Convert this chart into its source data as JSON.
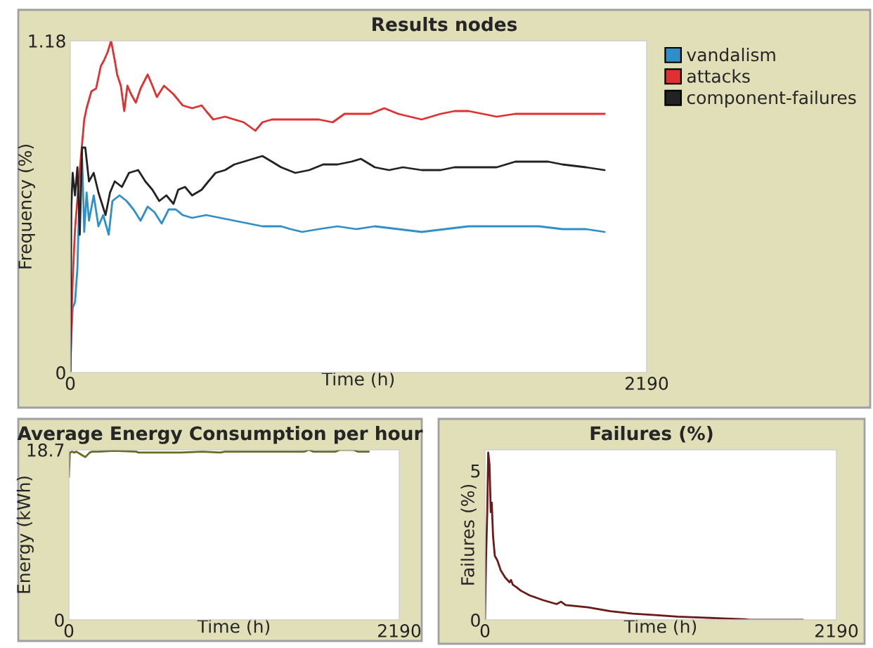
{
  "chart_data": [
    {
      "type": "line",
      "title": "Results nodes",
      "xlabel": "Time (h)",
      "ylabel": "Frequency (%)",
      "xlim": [
        0,
        2190
      ],
      "xticks": [
        0,
        2190
      ],
      "ylim": [
        0,
        1.18
      ],
      "yticks": [
        0,
        1.18
      ],
      "grid": false,
      "legend": "right",
      "series": [
        {
          "name": "vandalism",
          "color": "#2f8fc9",
          "x": [
            0,
            4,
            9,
            18,
            27,
            32,
            39,
            45,
            53,
            62,
            71,
            89,
            107,
            125,
            146,
            160,
            187,
            214,
            240,
            267,
            294,
            320,
            347,
            374,
            401,
            427,
            463,
            516,
            570,
            623,
            677,
            730,
            801,
            837,
            881,
            944,
            1015,
            1086,
            1157,
            1246,
            1335,
            1424,
            1513,
            1602,
            1691,
            1781,
            1870,
            1959,
            2030
          ],
          "values": [
            0,
            0.13,
            0.23,
            0.25,
            0.37,
            0.54,
            0.67,
            0.76,
            0.5,
            0.64,
            0.54,
            0.63,
            0.52,
            0.56,
            0.49,
            0.61,
            0.63,
            0.61,
            0.58,
            0.54,
            0.59,
            0.57,
            0.53,
            0.58,
            0.58,
            0.56,
            0.55,
            0.56,
            0.55,
            0.54,
            0.53,
            0.52,
            0.52,
            0.51,
            0.5,
            0.51,
            0.52,
            0.51,
            0.52,
            0.51,
            0.5,
            0.51,
            0.52,
            0.52,
            0.52,
            0.52,
            0.51,
            0.51,
            0.5
          ]
        },
        {
          "name": "attacks",
          "color": "#e03030",
          "x": [
            0,
            4,
            9,
            18,
            36,
            53,
            62,
            80,
            98,
            116,
            128,
            142,
            155,
            169,
            178,
            192,
            205,
            217,
            231,
            249,
            267,
            294,
            312,
            329,
            356,
            392,
            427,
            463,
            499,
            516,
            543,
            588,
            623,
            659,
            703,
            730,
            766,
            801,
            837,
            890,
            944,
            997,
            1042,
            1086,
            1140,
            1193,
            1246,
            1335,
            1407,
            1460,
            1513,
            1567,
            1620,
            1691,
            1781,
            1870,
            1959,
            2030
          ],
          "values": [
            0,
            0.16,
            0.33,
            0.51,
            0.72,
            0.9,
            0.94,
            1.0,
            1.01,
            1.09,
            1.11,
            1.14,
            1.18,
            1.11,
            1.06,
            1.02,
            0.93,
            1.02,
            0.99,
            0.96,
            1.01,
            1.06,
            1.02,
            0.98,
            1.02,
            0.99,
            0.95,
            0.94,
            0.95,
            0.93,
            0.9,
            0.91,
            0.9,
            0.89,
            0.86,
            0.89,
            0.9,
            0.9,
            0.9,
            0.9,
            0.9,
            0.89,
            0.92,
            0.92,
            0.92,
            0.94,
            0.92,
            0.9,
            0.92,
            0.93,
            0.93,
            0.92,
            0.91,
            0.92,
            0.92,
            0.92,
            0.92,
            0.92
          ]
        },
        {
          "name": "component-failures",
          "color": "#222222",
          "x": [
            0,
            4,
            9,
            18,
            27,
            36,
            45,
            57,
            71,
            89,
            107,
            134,
            151,
            169,
            196,
            223,
            258,
            285,
            312,
            338,
            365,
            392,
            410,
            436,
            463,
            499,
            525,
            552,
            588,
            623,
            659,
            694,
            730,
            766,
            801,
            855,
            908,
            961,
            1015,
            1068,
            1104,
            1157,
            1211,
            1264,
            1335,
            1407,
            1460,
            1513,
            1567,
            1620,
            1691,
            1763,
            1816,
            1870,
            1959,
            2030
          ],
          "values": [
            0,
            0.59,
            0.71,
            0.63,
            0.73,
            0.49,
            0.8,
            0.8,
            0.68,
            0.71,
            0.64,
            0.56,
            0.64,
            0.68,
            0.66,
            0.71,
            0.72,
            0.68,
            0.65,
            0.61,
            0.63,
            0.6,
            0.65,
            0.66,
            0.63,
            0.65,
            0.68,
            0.71,
            0.72,
            0.74,
            0.75,
            0.76,
            0.77,
            0.75,
            0.73,
            0.71,
            0.72,
            0.74,
            0.74,
            0.75,
            0.76,
            0.73,
            0.72,
            0.73,
            0.72,
            0.72,
            0.73,
            0.73,
            0.73,
            0.73,
            0.75,
            0.75,
            0.75,
            0.74,
            0.73,
            0.72
          ]
        }
      ]
    },
    {
      "type": "line",
      "title": "Average Energy Consumption per hour",
      "xlabel": "Time (h)",
      "ylabel": "Energy (kWh)",
      "xlim": [
        0,
        2190
      ],
      "xticks": [
        0,
        2190
      ],
      "ylim": [
        0,
        18.7
      ],
      "yticks": [
        0,
        18.7
      ],
      "grid": false,
      "series": [
        {
          "color": "#6b6b1a",
          "x": [
            0,
            6,
            21,
            35,
            50,
            79,
            109,
            138,
            153,
            197,
            299,
            446,
            461,
            740,
            887,
            1004,
            1033,
            1327,
            1562,
            1591,
            1621,
            1767,
            1797,
            1885,
            1914,
            1988
          ],
          "values": [
            15.7,
            18.4,
            18.5,
            18.4,
            18.5,
            18.2,
            17.9,
            18.4,
            18.5,
            18.5,
            18.6,
            18.5,
            18.4,
            18.4,
            18.5,
            18.4,
            18.5,
            18.5,
            18.5,
            18.7,
            18.5,
            18.5,
            18.7,
            18.7,
            18.5,
            18.5
          ]
        }
      ]
    },
    {
      "type": "line",
      "title": "Failures (%)",
      "xlabel": "Time (h)",
      "ylabel": "Failures (%)",
      "xlim": [
        0,
        2190
      ],
      "xticks": [
        0,
        2190
      ],
      "ylim": [
        0,
        5.7
      ],
      "yticks": [
        0,
        5
      ],
      "grid": false,
      "series": [
        {
          "color": "#6b1a1a",
          "x": [
            0,
            6,
            14,
            20,
            28,
            36,
            42,
            50,
            61,
            78,
            98,
            126,
            153,
            162,
            173,
            195,
            223,
            279,
            363,
            446,
            474,
            502,
            642,
            781,
            921,
            1060,
            1200,
            1339,
            1479,
            1618,
            1646,
            1786,
            1981
          ],
          "values": [
            0,
            1.98,
            3.61,
            5.61,
            5.21,
            3.61,
            3.93,
            2.82,
            2.15,
            1.98,
            1.66,
            1.42,
            1.26,
            1.34,
            1.18,
            1.1,
            0.98,
            0.82,
            0.66,
            0.53,
            0.61,
            0.5,
            0.42,
            0.29,
            0.21,
            0.16,
            0.11,
            0.08,
            0.05,
            0.02,
            0,
            0,
            0
          ]
        }
      ]
    }
  ]
}
